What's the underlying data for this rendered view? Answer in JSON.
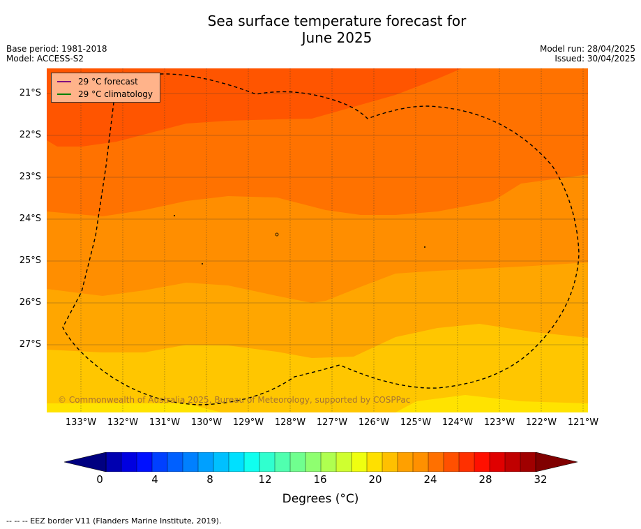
{
  "title_line1": "Sea surface temperature forecast for",
  "title_line2": "June 2025",
  "base_period": "Base period: 1981-2018",
  "model": "Model: ACCESS-S2",
  "model_run": "Model run: 28/04/2025",
  "issued": "Issued: 30/04/2025",
  "legend": {
    "forecast_label": "29 °C  forecast",
    "forecast_color": "#800080",
    "climatology_label": "29 °C  climatology",
    "climatology_color": "#008000"
  },
  "copyright": "© Commonwealth of Australia 2025, Bureau of Meteorology, supported by COSPPac",
  "lat_labels": [
    "21°S",
    "22°S",
    "23°S",
    "24°S",
    "25°S",
    "26°S",
    "27°S"
  ],
  "lon_labels": [
    "133°W",
    "132°W",
    "131°W",
    "130°W",
    "129°W",
    "128°W",
    "127°W",
    "126°W",
    "125°W",
    "124°W",
    "123°W",
    "122°W",
    "121°W"
  ],
  "colorbar": {
    "ticks": [
      "0",
      "4",
      "8",
      "12",
      "16",
      "20",
      "24",
      "28",
      "32"
    ],
    "label": "Degrees (°C)",
    "colors": [
      "#000080",
      "#0000b0",
      "#0000e0",
      "#0010ff",
      "#0040ff",
      "#0060ff",
      "#0080ff",
      "#00a0ff",
      "#00c0ff",
      "#00e0ff",
      "#10ffef",
      "#30ffcf",
      "#50ffaf",
      "#70ff8f",
      "#8fff70",
      "#afff50",
      "#cfff30",
      "#efff10",
      "#ffe000",
      "#ffc000",
      "#ffa000",
      "#ff9000",
      "#ff7000",
      "#ff5000",
      "#ff3000",
      "#ff1000",
      "#e00000",
      "#c00000",
      "#a00000",
      "#800000"
    ]
  },
  "footnote": "--  --  -- EEZ border V11 (Flanders Marine Institute, 2019)."
}
